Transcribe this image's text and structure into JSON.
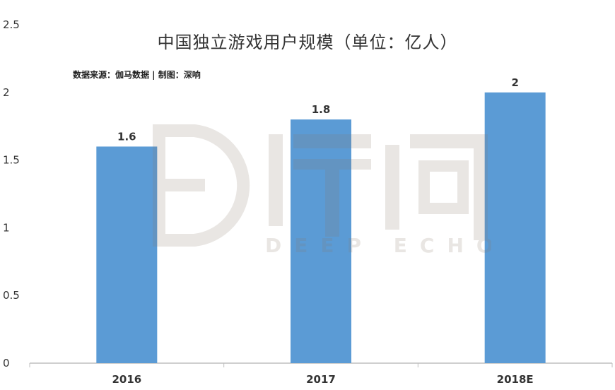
{
  "chart_data": {
    "type": "bar",
    "title": "中国独立游戏用户规模（单位：亿人）",
    "subtitle": "数据来源：伽马数据 | 制图：深响",
    "categories": [
      "2016",
      "2017",
      "2018E"
    ],
    "values": [
      1.6,
      1.8,
      2
    ],
    "value_labels": [
      "1.6",
      "1.8",
      "2"
    ],
    "ylim": [
      0,
      2.5
    ],
    "yticks": [
      0,
      0.5,
      1,
      1.5,
      2,
      2.5
    ],
    "ytick_labels": [
      "0",
      "0.5",
      "1",
      "1.5",
      "2",
      "2.5"
    ],
    "grid": false,
    "bar_color": "#5b9bd5",
    "legend": null
  },
  "watermark": {
    "text_cn": "深响",
    "text_en": "DEEP ECHO"
  }
}
